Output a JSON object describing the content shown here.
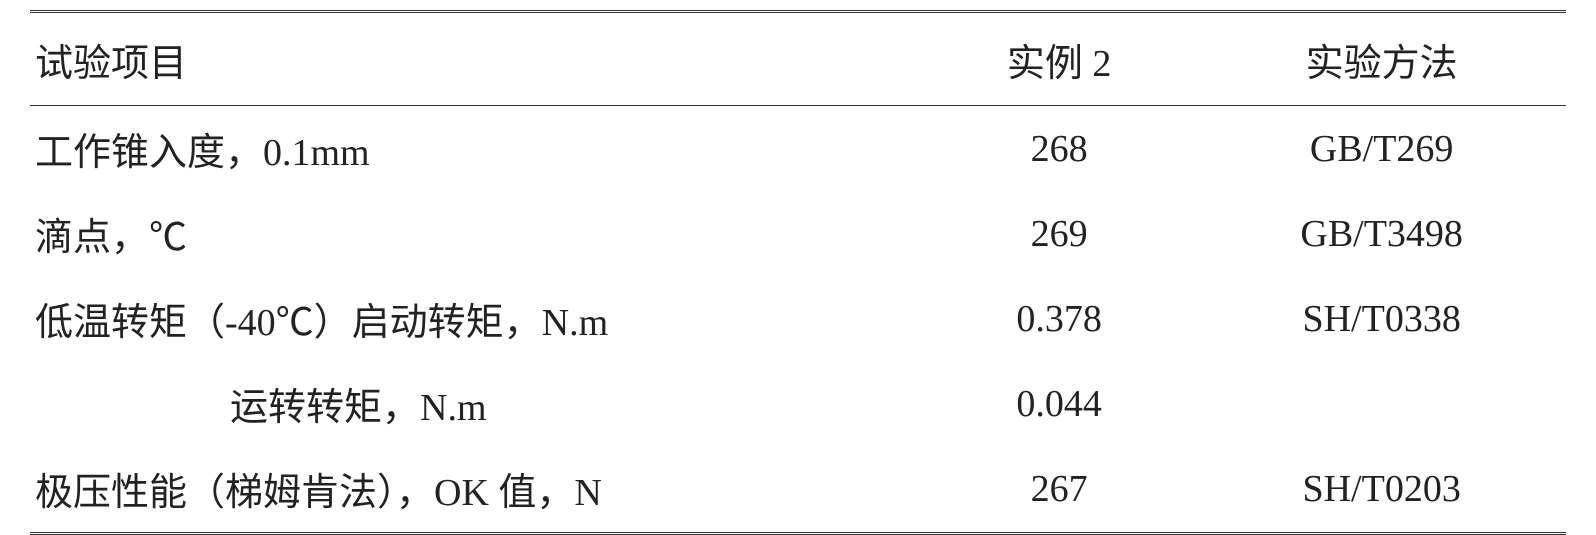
{
  "table": {
    "headers": {
      "item": "试验项目",
      "value": "实例 2",
      "method": "实验方法"
    },
    "rows": [
      {
        "item": "工作锥入度，0.1mm",
        "value": "268",
        "method": "GB/T269",
        "indent": false
      },
      {
        "item": "滴点，℃",
        "value": "269",
        "method": "GB/T3498",
        "indent": false
      },
      {
        "item": "低温转矩（-40℃）启动转矩，N.m",
        "value": "0.378",
        "method": "SH/T0338",
        "indent": false
      },
      {
        "item": "运转转矩，N.m",
        "value": "0.044",
        "method": "",
        "indent": true
      },
      {
        "item": "极压性能（梯姆肯法），OK 值，N",
        "value": "267",
        "method": "SH/T0203",
        "indent": false
      }
    ],
    "styling": {
      "font_size": 38,
      "text_color": "#222222",
      "background_color": "#ffffff",
      "border_color": "#333333",
      "col_widths": [
        "58%",
        "18%",
        "24%"
      ],
      "indent_padding": 200
    }
  }
}
